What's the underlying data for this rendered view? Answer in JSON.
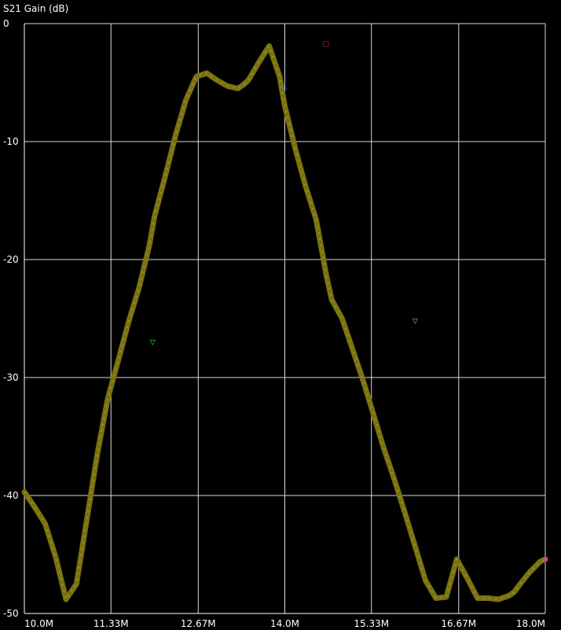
{
  "chart_data": {
    "type": "line",
    "title": "S21 Gain (dB)",
    "xlabel": "",
    "ylabel": "",
    "xlim": [
      10.0,
      18.0
    ],
    "ylim": [
      -50,
      0
    ],
    "x_unit_suffix": "M",
    "x_ticks": [
      10.0,
      11.33,
      12.67,
      14.0,
      15.33,
      16.67,
      18.0
    ],
    "x_tick_labels": [
      "10.0M",
      "11.33M",
      "12.67M",
      "14.0M",
      "15.33M",
      "16.67M",
      "18.0M"
    ],
    "y_ticks": [
      0,
      -10,
      -20,
      -30,
      -40,
      -50
    ],
    "y_tick_labels": [
      "0",
      "-10",
      "-20",
      "-30",
      "-40",
      "-50"
    ],
    "grid": true,
    "background_color": "#000000",
    "grid_color": "#d9d9d9",
    "series": [
      {
        "color": "#7a7210",
        "x": [
          10.0,
          10.16,
          10.32,
          10.48,
          10.64,
          10.8,
          10.96,
          11.12,
          11.28,
          11.44,
          11.6,
          11.76,
          11.92,
          12.0,
          12.16,
          12.32,
          12.48,
          12.64,
          12.8,
          12.96,
          13.12,
          13.28,
          13.36,
          13.44,
          13.6,
          13.76,
          13.92,
          14.0,
          14.16,
          14.32,
          14.48,
          14.56,
          14.64,
          14.72,
          14.88,
          15.04,
          15.2,
          15.36,
          15.52,
          15.68,
          15.84,
          16.0,
          16.16,
          16.32,
          16.48,
          16.64,
          16.8,
          16.96,
          17.12,
          17.28,
          17.44,
          17.52,
          17.6,
          17.76,
          17.92,
          18.0
        ],
        "y": [
          -39.7,
          -41.0,
          -42.4,
          -45.2,
          -48.8,
          -47.5,
          -42.0,
          -36.5,
          -31.8,
          -28.6,
          -25.3,
          -22.4,
          -18.8,
          -16.3,
          -13.0,
          -9.5,
          -6.5,
          -4.5,
          -4.2,
          -4.8,
          -5.3,
          -5.5,
          -5.2,
          -4.8,
          -3.3,
          -1.9,
          -4.5,
          -7.0,
          -10.6,
          -13.8,
          -16.6,
          -19.0,
          -21.4,
          -23.4,
          -25.0,
          -27.6,
          -30.2,
          -33.1,
          -36.0,
          -38.6,
          -41.4,
          -44.3,
          -47.2,
          -48.7,
          -48.6,
          -45.4,
          -47.0,
          -48.7,
          -48.7,
          -48.8,
          -48.5,
          -48.2,
          -47.6,
          -46.5,
          -45.6,
          -45.4
        ],
        "markers": [
          {
            "x": 11.97,
            "y": -27.0,
            "symbol": "▽",
            "color": "#33ff33"
          },
          {
            "x": 14.0,
            "y": -5.5,
            "symbol": "◇",
            "color": "#3355ff"
          },
          {
            "x": 14.63,
            "y": -1.7,
            "symbol": "▢",
            "color": "#ff2222"
          },
          {
            "x": 16.0,
            "y": -25.2,
            "symbol": "▽",
            "color": "#33ffcc"
          },
          {
            "x": 18.0,
            "y": -45.4,
            "symbol": "✕",
            "color": "#ff33ff"
          }
        ]
      }
    ]
  }
}
